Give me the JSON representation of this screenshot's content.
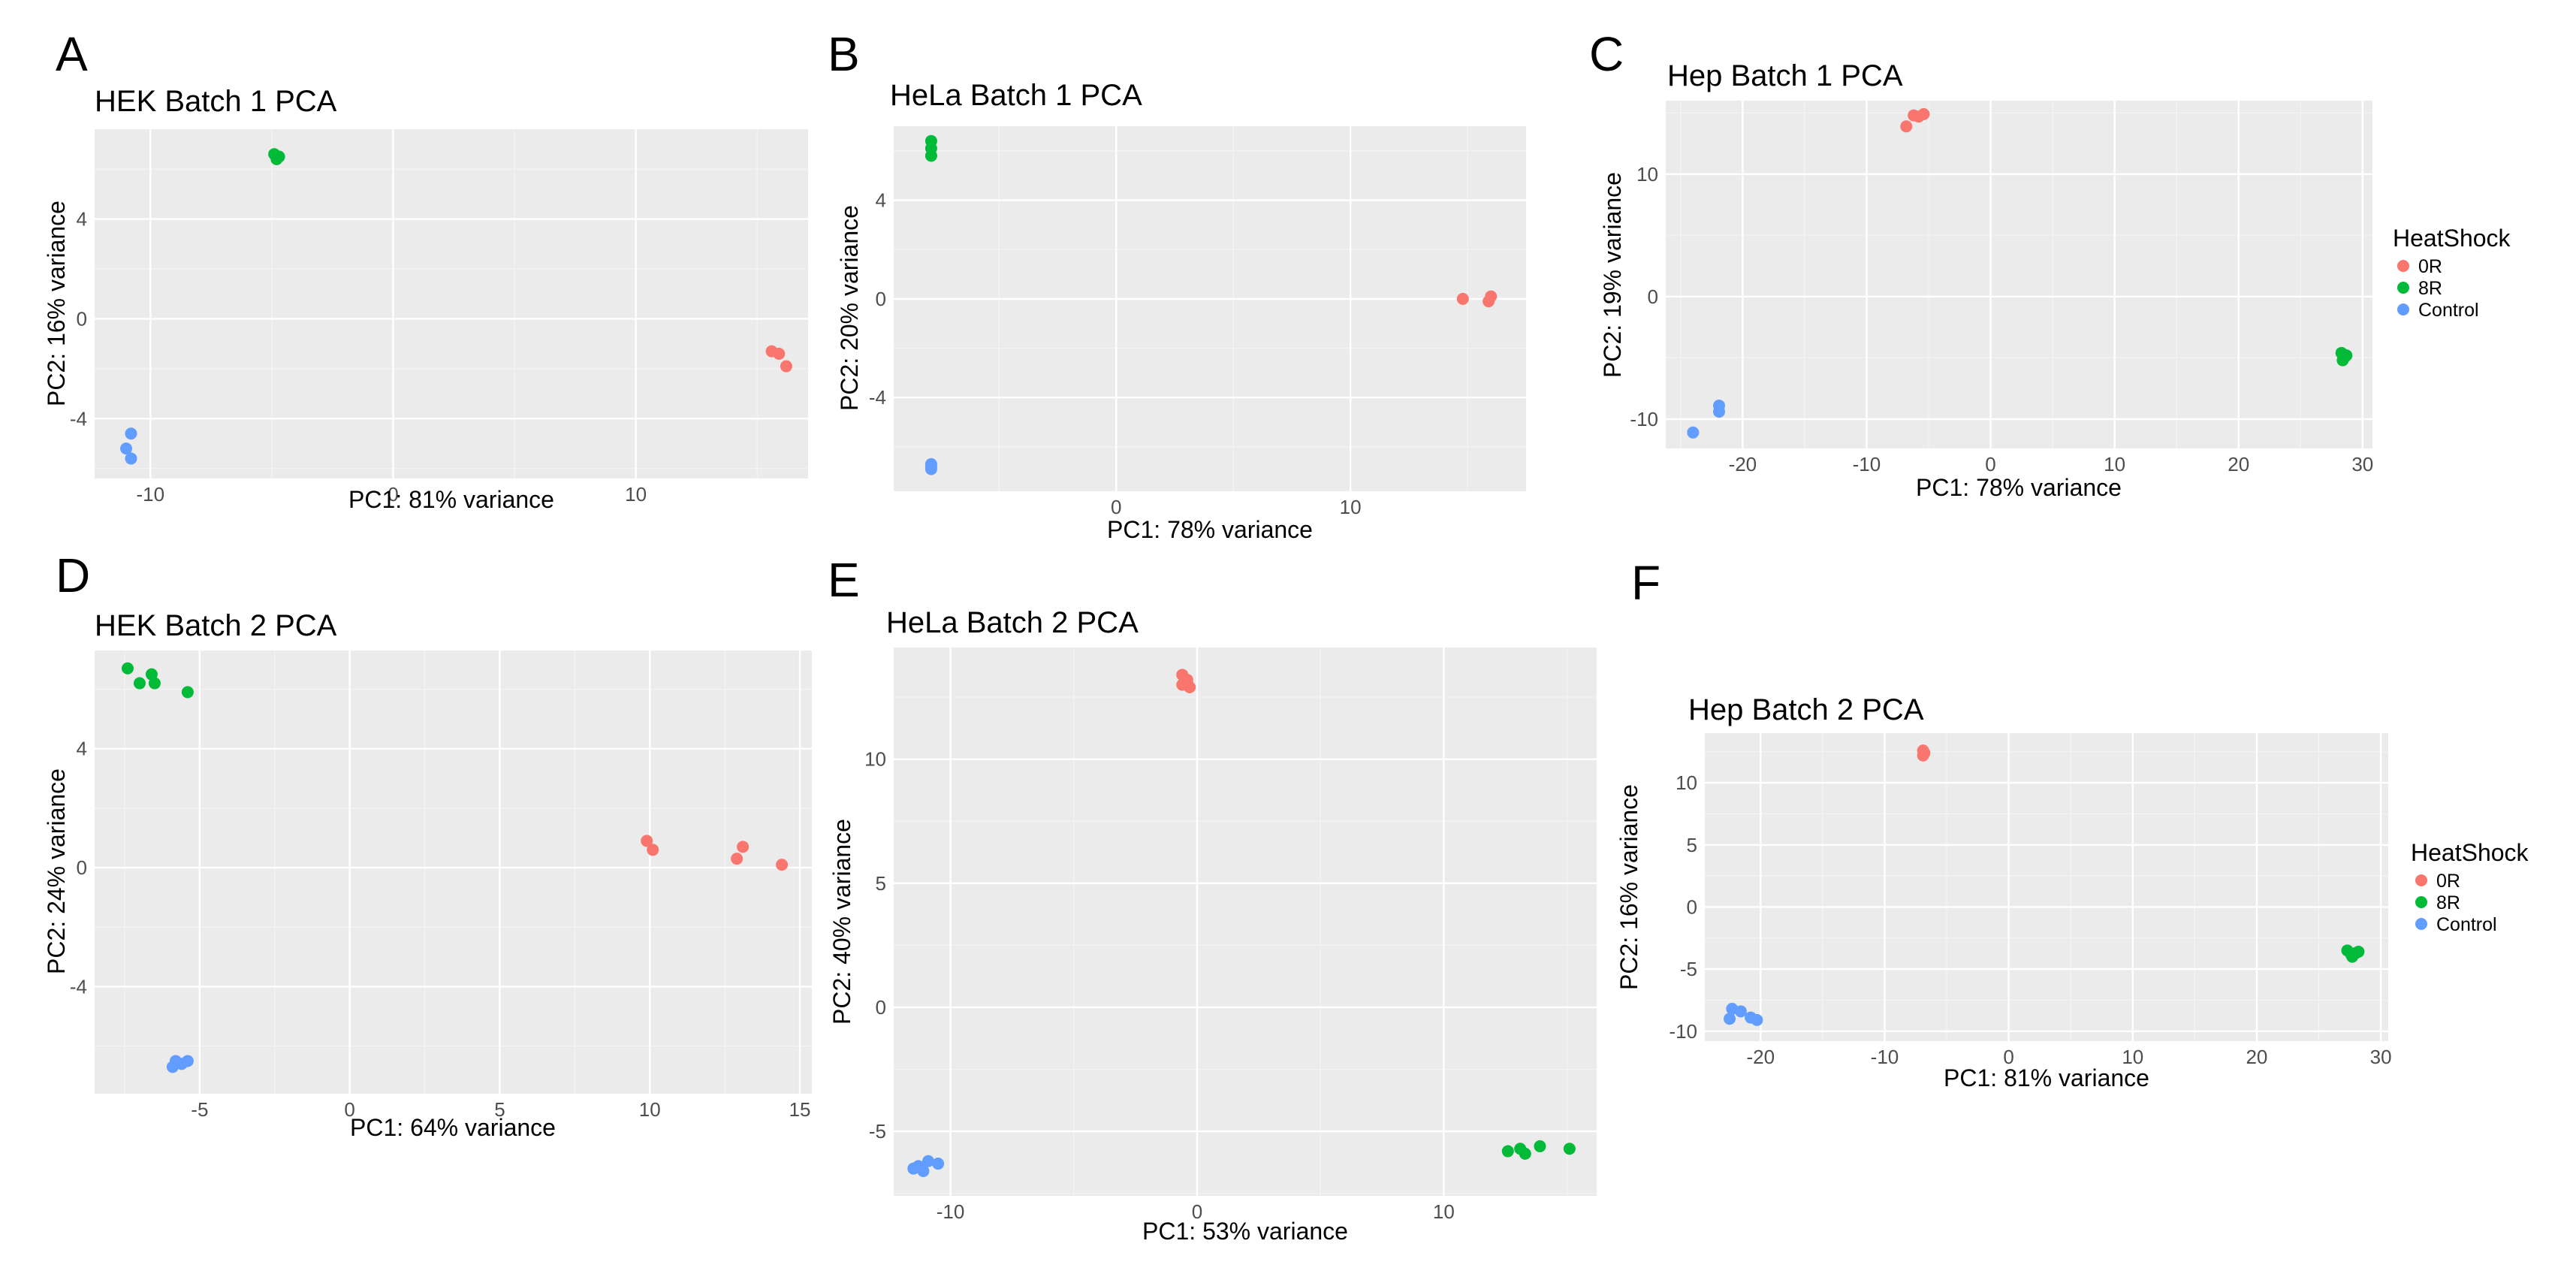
{
  "figure": {
    "colors": {
      "panel_bg": "#ebebeb",
      "grid_major": "#ffffff",
      "grid_minor": "#f4f4f4",
      "tick_text": "#4d4d4d",
      "0R": "#f8766d",
      "8R": "#00ba38",
      "Control": "#619cff"
    },
    "legend": {
      "title": "HeatShock",
      "entries": [
        "0R",
        "8R",
        "Control"
      ]
    }
  },
  "chart_data": [
    {
      "id": "A",
      "letter": "A",
      "type": "scatter",
      "title": "HEK Batch 1 PCA",
      "xlabel": "PC1: 81% variance",
      "ylabel": "PC2: 16% variance",
      "xlim": [
        -12.3,
        17.1
      ],
      "ylim": [
        -6.4,
        7.6
      ],
      "xticks": [
        -10,
        0,
        10
      ],
      "yticks": [
        -4,
        0,
        4
      ],
      "series": [
        {
          "name": "0R",
          "points": [
            [
              15.6,
              -1.3
            ],
            [
              15.9,
              -1.4
            ],
            [
              16.2,
              -1.9
            ]
          ]
        },
        {
          "name": "8R",
          "points": [
            [
              -4.9,
              6.6
            ],
            [
              -4.7,
              6.5
            ],
            [
              -4.8,
              6.4
            ]
          ]
        },
        {
          "name": "Control",
          "points": [
            [
              -10.8,
              -4.6
            ],
            [
              -11.0,
              -5.2
            ],
            [
              -10.8,
              -5.6
            ]
          ]
        }
      ]
    },
    {
      "id": "B",
      "letter": "B",
      "type": "scatter",
      "title": "HeLa Batch 1 PCA",
      "xlabel": "PC1: 78% variance",
      "ylabel": "PC2: 20% variance",
      "xlim": [
        -9.5,
        17.5
      ],
      "ylim": [
        -7.8,
        7.0
      ],
      "xticks": [
        0,
        10
      ],
      "yticks": [
        -4,
        0,
        4
      ],
      "series": [
        {
          "name": "0R",
          "points": [
            [
              14.8,
              0.0
            ],
            [
              16.0,
              0.1
            ],
            [
              15.9,
              -0.1
            ]
          ]
        },
        {
          "name": "8R",
          "points": [
            [
              -7.9,
              6.4
            ],
            [
              -7.9,
              6.1
            ],
            [
              -7.9,
              5.8
            ]
          ]
        },
        {
          "name": "Control",
          "points": [
            [
              -7.9,
              -6.7
            ],
            [
              -7.9,
              -6.9
            ],
            [
              -7.9,
              -6.8
            ]
          ]
        }
      ]
    },
    {
      "id": "C",
      "letter": "C",
      "type": "scatter",
      "title": "Hep Batch 1 PCA",
      "xlabel": "PC1: 78% variance",
      "ylabel": "PC2: 19% variance",
      "xlim": [
        -26.2,
        30.8
      ],
      "ylim": [
        -12.4,
        16.0
      ],
      "xticks": [
        -20,
        -10,
        0,
        10,
        20,
        30
      ],
      "yticks": [
        -10,
        0,
        10
      ],
      "series": [
        {
          "name": "0R",
          "points": [
            [
              -6.8,
              13.9
            ],
            [
              -6.2,
              14.8
            ],
            [
              -5.8,
              14.7
            ],
            [
              -5.4,
              14.9
            ]
          ]
        },
        {
          "name": "8R",
          "points": [
            [
              28.3,
              -4.6
            ],
            [
              28.6,
              -4.9
            ],
            [
              28.4,
              -5.2
            ],
            [
              28.7,
              -4.8
            ]
          ]
        },
        {
          "name": "Control",
          "points": [
            [
              -21.9,
              -8.9
            ],
            [
              -21.9,
              -9.4
            ],
            [
              -24.0,
              -11.1
            ]
          ]
        }
      ]
    },
    {
      "id": "D",
      "letter": "D",
      "type": "scatter",
      "title": "HEK Batch 2 PCA",
      "xlabel": "PC1: 64% variance",
      "ylabel": "PC2: 24% variance",
      "xlim": [
        -8.5,
        15.4
      ],
      "ylim": [
        -7.6,
        7.3
      ],
      "xticks": [
        -5,
        0,
        5,
        10,
        15
      ],
      "yticks": [
        -4,
        0,
        4
      ],
      "series": [
        {
          "name": "0R",
          "points": [
            [
              9.9,
              0.9
            ],
            [
              10.1,
              0.6
            ],
            [
              12.9,
              0.3
            ],
            [
              13.1,
              0.7
            ],
            [
              14.4,
              0.1
            ]
          ]
        },
        {
          "name": "8R",
          "points": [
            [
              -7.4,
              6.7
            ],
            [
              -7.0,
              6.2
            ],
            [
              -6.6,
              6.5
            ],
            [
              -6.5,
              6.2
            ],
            [
              -5.4,
              5.9
            ]
          ]
        },
        {
          "name": "Control",
          "points": [
            [
              -5.8,
              -6.5
            ],
            [
              -5.4,
              -6.5
            ],
            [
              -5.9,
              -6.7
            ],
            [
              -5.6,
              -6.6
            ]
          ]
        }
      ]
    },
    {
      "id": "E",
      "letter": "E",
      "type": "scatter",
      "title": "HeLa Batch 2 PCA",
      "xlabel": "PC1: 53% variance",
      "ylabel": "PC2: 40% variance",
      "xlim": [
        -12.3,
        16.2
      ],
      "ylim": [
        -7.6,
        14.5
      ],
      "xticks": [
        -10,
        0,
        10
      ],
      "yticks": [
        -5,
        0,
        5,
        10
      ],
      "series": [
        {
          "name": "0R",
          "points": [
            [
              -0.6,
              13.4
            ],
            [
              -0.4,
              13.2
            ],
            [
              -0.3,
              12.9
            ],
            [
              -0.4,
              13.1
            ],
            [
              -0.6,
              13.0
            ]
          ]
        },
        {
          "name": "8R",
          "points": [
            [
              12.6,
              -5.8
            ],
            [
              13.1,
              -5.7
            ],
            [
              13.3,
              -5.9
            ],
            [
              13.9,
              -5.6
            ],
            [
              15.1,
              -5.7
            ]
          ]
        },
        {
          "name": "Control",
          "points": [
            [
              -11.3,
              -6.4
            ],
            [
              -10.9,
              -6.2
            ],
            [
              -10.5,
              -6.3
            ],
            [
              -11.1,
              -6.6
            ],
            [
              -11.5,
              -6.5
            ]
          ]
        }
      ]
    },
    {
      "id": "F",
      "letter": "F",
      "type": "scatter",
      "title": "Hep Batch 2 PCA",
      "xlabel": "PC1: 81% variance",
      "ylabel": "PC2: 16% variance",
      "xlim": [
        -24.5,
        30.6
      ],
      "ylim": [
        -10.8,
        14.0
      ],
      "xticks": [
        -20,
        -10,
        0,
        10,
        20,
        30
      ],
      "yticks": [
        -10,
        -5,
        0,
        5,
        10
      ],
      "series": [
        {
          "name": "0R",
          "points": [
            [
              -6.9,
              12.6
            ],
            [
              -6.9,
              12.2
            ],
            [
              -6.8,
              12.4
            ]
          ]
        },
        {
          "name": "8R",
          "points": [
            [
              27.3,
              -3.5
            ],
            [
              27.6,
              -3.8
            ],
            [
              28.0,
              -3.7
            ],
            [
              27.7,
              -4.0
            ],
            [
              28.2,
              -3.6
            ]
          ]
        },
        {
          "name": "Control",
          "points": [
            [
              -22.3,
              -8.2
            ],
            [
              -21.6,
              -8.4
            ],
            [
              -22.5,
              -9.0
            ],
            [
              -20.8,
              -8.9
            ],
            [
              -20.3,
              -9.1
            ]
          ]
        }
      ]
    }
  ]
}
